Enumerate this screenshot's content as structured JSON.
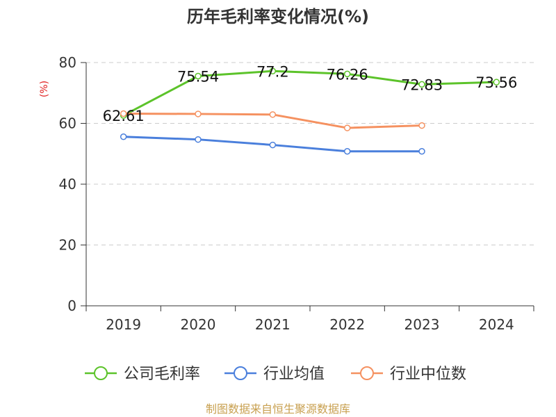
{
  "chart_data": {
    "type": "line",
    "title": "历年毛利率变化情况(%)",
    "ylabel": "(%)",
    "xlabel": "",
    "ylim": [
      0,
      80
    ],
    "yticks": [
      "0",
      "20",
      "40",
      "60",
      "80"
    ],
    "categories": [
      "2019",
      "2020",
      "2021",
      "2022",
      "2023",
      "2024"
    ],
    "grid": "horizontal-dashed",
    "legend_position": "bottom",
    "series": [
      {
        "name": "公司毛利率",
        "color": "#5cc32a",
        "values": [
          62.61,
          75.54,
          77.2,
          76.26,
          72.83,
          73.56
        ],
        "labels": [
          "62.61",
          "75.54",
          "77.2",
          "76.26",
          "72.83",
          "73.56"
        ]
      },
      {
        "name": "行业均值",
        "color": "#4a7fdc",
        "values": [
          55.6,
          54.7,
          52.9,
          50.8,
          50.8,
          null
        ]
      },
      {
        "name": "行业中位数",
        "color": "#f59160",
        "values": [
          63.2,
          63.1,
          62.9,
          58.5,
          59.3,
          null
        ]
      }
    ]
  },
  "colors": {
    "axis": "#333333",
    "grid": "#cccccc",
    "unit": "#e02020",
    "source": "#c8a050"
  },
  "source": "制图数据来自恒生聚源数据库"
}
